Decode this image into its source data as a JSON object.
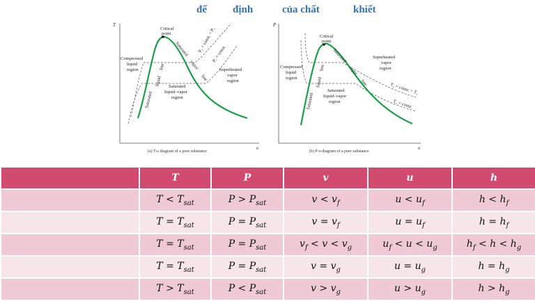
{
  "title": {
    "part1": "để",
    "part2": "định",
    "part3": "của chất",
    "part4": "khiết"
  },
  "diagram_tv": {
    "caption": "(a) T-υ diagram of a pure substance",
    "y_axis": "T",
    "x_axis": "υ",
    "critical_point": [
      "Critical",
      "point"
    ],
    "compressed": [
      "Compressed",
      "liquid",
      "region"
    ],
    "superheated": [
      "Superheated",
      "vapor",
      "region"
    ],
    "mixture": [
      "Saturated",
      "liquid–vapor",
      "region"
    ],
    "sat_liquid_line": [
      "Saturated",
      "liquid",
      "line"
    ],
    "sat_vapor_line": [
      "Saturated",
      "vapor",
      "line"
    ],
    "p2": "P₂ = const. > P₁",
    "p1": "P₁ = const."
  },
  "diagram_pv": {
    "caption": "(b) P-υ diagram of a pure substance",
    "y_axis": "P",
    "x_axis": "υ",
    "critical_point": [
      "Critical",
      "point"
    ],
    "compressed": [
      "Compressed",
      "liquid",
      "region"
    ],
    "superheated": [
      "Superheated",
      "vapor",
      "region"
    ],
    "mixture": [
      "Saturated",
      "liquid–vapor",
      "region"
    ],
    "sat_liquid_line": [
      "Saturated",
      "liquid",
      "line"
    ],
    "sat_vapor_line": [
      "Saturated",
      "vapor",
      "line"
    ],
    "t2": "T₂ = const. > T₁",
    "t1": "T₁ = const."
  },
  "table": {
    "headers": [
      "",
      "T",
      "P",
      "v",
      "u",
      "h"
    ],
    "rows": [
      {
        "T": [
          "T < T",
          "sat",
          ""
        ],
        "P": [
          "P > P",
          "sat",
          ""
        ],
        "v": [
          "v < v",
          "f",
          ""
        ],
        "u": [
          "u < u",
          "f",
          ""
        ],
        "h": [
          "h < h",
          "f",
          ""
        ]
      },
      {
        "T": [
          "T = T",
          "sat",
          ""
        ],
        "P": [
          "P = P",
          "sat",
          ""
        ],
        "v": [
          "v = v",
          "f",
          ""
        ],
        "u": [
          "u = u",
          "f",
          ""
        ],
        "h": [
          "h = h",
          "f",
          ""
        ]
      },
      {
        "T": [
          "T = T",
          "sat",
          ""
        ],
        "P": [
          "P = P",
          "sat",
          ""
        ],
        "v": [
          "v",
          "f",
          " < v < v",
          "g"
        ],
        "u": [
          "u",
          "f",
          " < u < u",
          "g"
        ],
        "h": [
          "h",
          "f",
          " < h < h",
          "g"
        ]
      },
      {
        "T": [
          "T = T",
          "sat",
          ""
        ],
        "P": [
          "P = P",
          "sat",
          ""
        ],
        "v": [
          "v = v",
          "g",
          ""
        ],
        "u": [
          "u = u",
          "g",
          ""
        ],
        "h": [
          "h = h",
          "g",
          ""
        ]
      },
      {
        "T": [
          "T > T",
          "sat",
          ""
        ],
        "P": [
          "P < P",
          "sat",
          ""
        ],
        "v": [
          "v > v",
          "g",
          ""
        ],
        "u": [
          "u > u",
          "g",
          ""
        ],
        "h": [
          "h > h",
          "g",
          ""
        ]
      }
    ]
  }
}
